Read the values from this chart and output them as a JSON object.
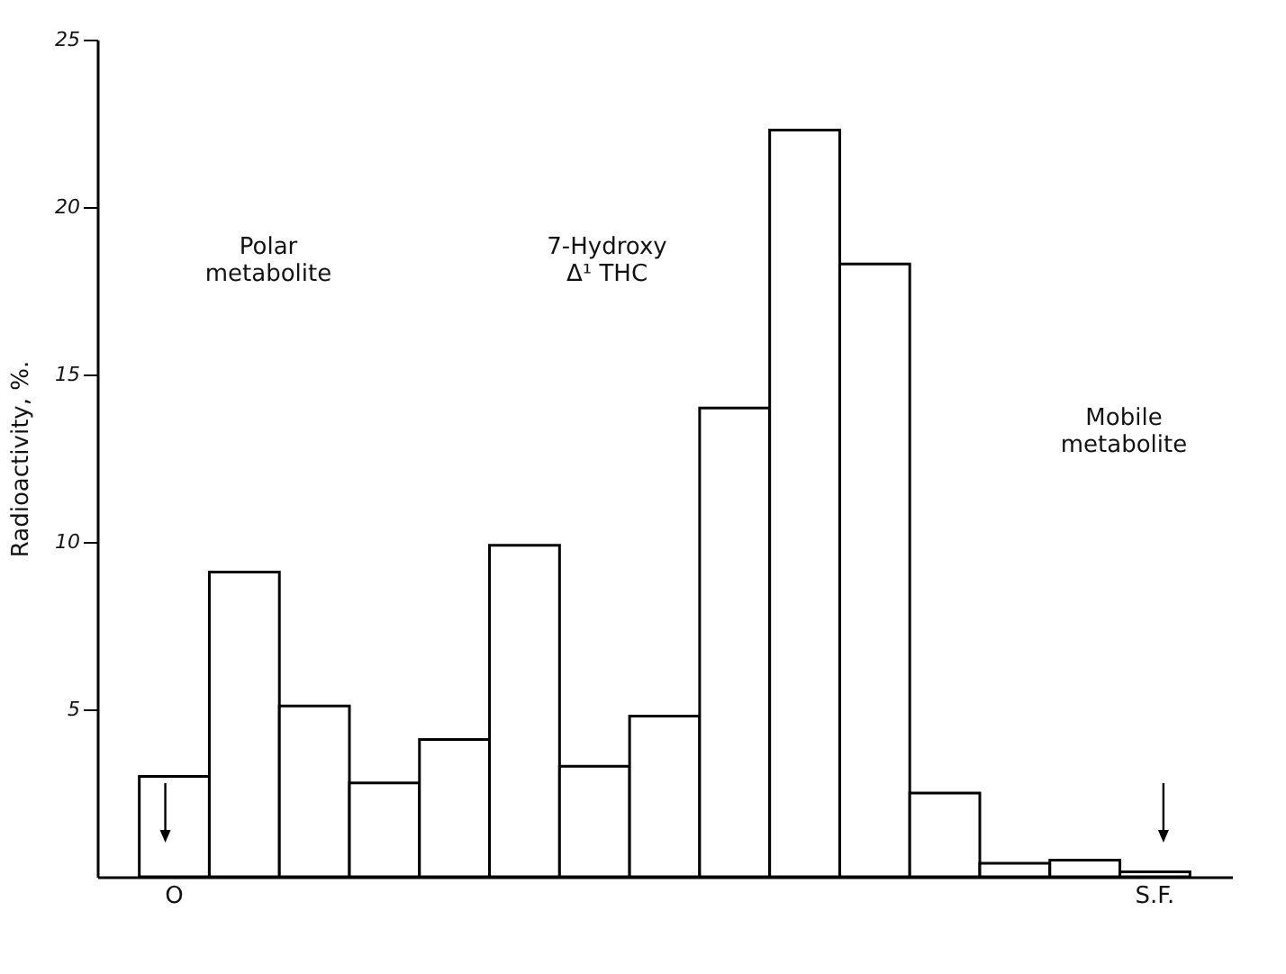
{
  "chart_data": {
    "type": "bar",
    "ylabel": "Radioactivity,  %.",
    "categories": [
      "O",
      null,
      null,
      null,
      null,
      null,
      null,
      null,
      null,
      null,
      null,
      null,
      null,
      null,
      "S.F."
    ],
    "values": [
      3.0,
      9.1,
      5.1,
      2.8,
      4.1,
      9.9,
      3.3,
      4.8,
      14.0,
      22.3,
      18.3,
      2.5,
      0.4,
      0.5,
      0.15
    ],
    "color": "#ffffff",
    "ylim": [
      0,
      25
    ],
    "yticks": [
      5,
      10,
      15,
      20,
      25
    ],
    "grid": false,
    "annotations": [
      "Polar\nmetabolite",
      "7-Hydroxy\nΔ¹   THC",
      "Mobile\nmetabolite"
    ]
  }
}
